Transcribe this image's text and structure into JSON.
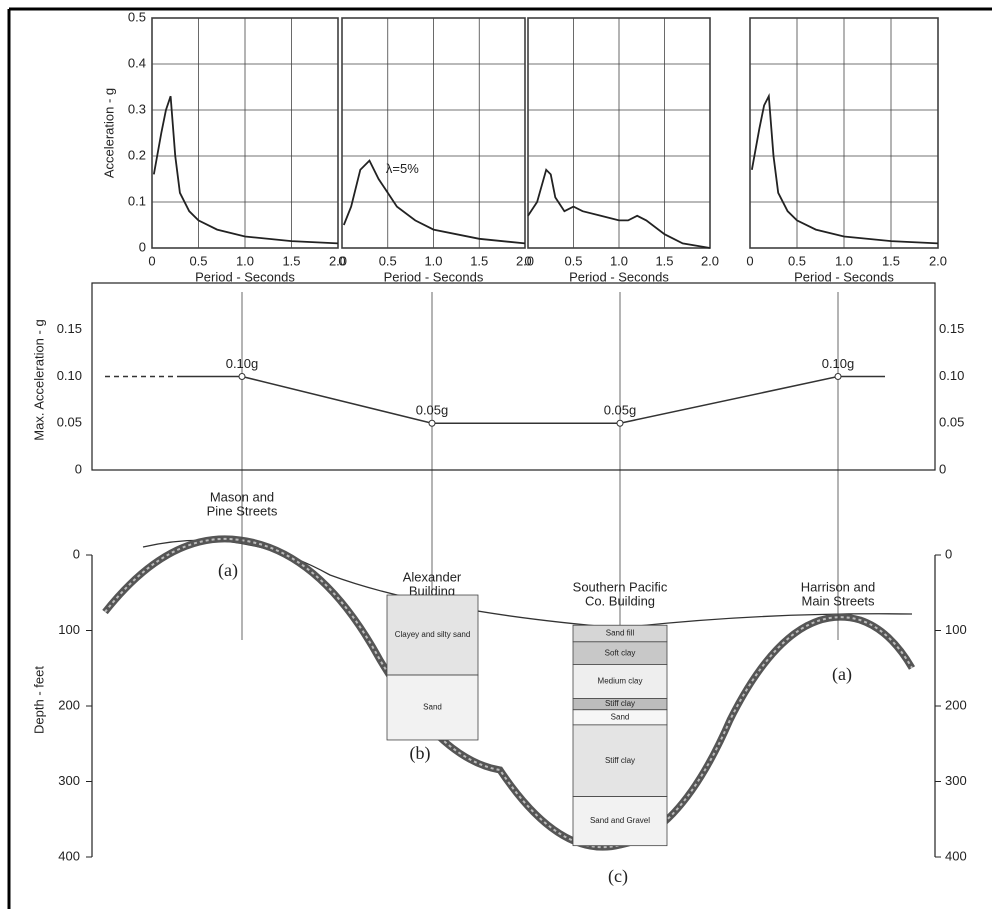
{
  "chart_data": [
    {
      "type": "line",
      "y_label": "Acceleration - g",
      "x_label": "Period - Seconds",
      "xlim": [
        0,
        2
      ],
      "ylim": [
        0,
        0.5
      ],
      "xticks": [
        0,
        0.5,
        {
          "value": 1,
          "label": "1.0"
        },
        1.5,
        {
          "value": 2,
          "label": "2.0"
        }
      ],
      "yticks": [
        0,
        0.1,
        0.2,
        0.3,
        0.4,
        0.5
      ],
      "y_tick_labels": true,
      "grid": true,
      "series": [
        {
          "color": "#222222",
          "x": [
            0.02,
            0.1,
            0.15,
            0.2,
            0.25,
            0.3,
            0.4,
            0.5,
            0.7,
            1.0,
            1.5,
            2.0
          ],
          "values": [
            0.16,
            0.25,
            0.3,
            0.33,
            0.2,
            0.12,
            0.08,
            0.06,
            0.04,
            0.025,
            0.015,
            0.01
          ]
        }
      ]
    },
    {
      "type": "line",
      "x_label": "Period - Seconds",
      "annotation": "λ=5%",
      "xlim": [
        0,
        2
      ],
      "ylim": [
        0,
        0.5
      ],
      "xticks": [
        0,
        0.5,
        {
          "value": 1,
          "label": "1.0"
        },
        1.5,
        {
          "value": 2,
          "label": "2.0"
        }
      ],
      "yticks": [
        0,
        0.1,
        0.2,
        0.3,
        0.4,
        0.5
      ],
      "y_tick_labels": false,
      "grid": true,
      "series": [
        {
          "color": "#222222",
          "x": [
            0.02,
            0.1,
            0.2,
            0.3,
            0.4,
            0.5,
            0.6,
            0.8,
            1.0,
            1.5,
            2.0
          ],
          "values": [
            0.05,
            0.09,
            0.17,
            0.19,
            0.15,
            0.12,
            0.09,
            0.06,
            0.04,
            0.02,
            0.01
          ]
        }
      ]
    },
    {
      "type": "line",
      "x_label": "Period - Seconds",
      "xlim": [
        0,
        2
      ],
      "ylim": [
        0,
        0.5
      ],
      "xticks": [
        0,
        0.5,
        {
          "value": 1,
          "label": "1.0"
        },
        1.5,
        {
          "value": 2,
          "label": "2.0"
        }
      ],
      "yticks": [
        0,
        0.1,
        0.2,
        0.3,
        0.4,
        0.5
      ],
      "y_tick_labels": false,
      "grid": true,
      "series": [
        {
          "color": "#222222",
          "x": [
            0.0,
            0.1,
            0.2,
            0.25,
            0.3,
            0.4,
            0.5,
            0.6,
            0.8,
            1.0,
            1.1,
            1.2,
            1.3,
            1.5,
            1.7,
            2.0
          ],
          "values": [
            0.07,
            0.1,
            0.17,
            0.16,
            0.11,
            0.08,
            0.09,
            0.08,
            0.07,
            0.06,
            0.06,
            0.07,
            0.06,
            0.03,
            0.01,
            0.0
          ]
        }
      ]
    },
    {
      "type": "line",
      "x_label": "Period - Seconds",
      "xlim": [
        0,
        2
      ],
      "ylim": [
        0,
        0.5
      ],
      "xticks": [
        0,
        0.5,
        {
          "value": 1,
          "label": "1.0"
        },
        1.5,
        {
          "value": 2,
          "label": "2.0"
        }
      ],
      "yticks": [
        0,
        0.1,
        0.2,
        0.3,
        0.4,
        0.5
      ],
      "y_tick_labels": false,
      "grid": true,
      "series": [
        {
          "color": "#222222",
          "x": [
            0.02,
            0.1,
            0.15,
            0.2,
            0.25,
            0.3,
            0.4,
            0.5,
            0.7,
            1.0,
            1.5,
            2.0
          ],
          "values": [
            0.17,
            0.26,
            0.31,
            0.33,
            0.2,
            0.12,
            0.08,
            0.06,
            0.04,
            0.025,
            0.015,
            0.01
          ]
        }
      ]
    },
    {
      "type": "points",
      "y_label": "Max. Acceleration - g",
      "ylim": [
        0,
        0.2
      ],
      "yticks": [
        0,
        0.05,
        {
          "value": 0.1,
          "label": "0.10"
        },
        0.15
      ],
      "values": [
        0.1,
        0.05,
        0.05,
        0.1
      ],
      "value_labels": [
        "0.10g",
        "0.05g",
        "0.05g",
        "0.10g"
      ]
    }
  ],
  "cross_section": {
    "y_label": "Depth - feet",
    "ylim": [
      0,
      400
    ],
    "yticks": [
      0,
      100,
      200,
      300,
      400
    ],
    "locations": [
      {
        "name": [
          "Mason and",
          "Pine Streets"
        ],
        "note": "(a)"
      },
      {
        "name": [
          "Alexander",
          "Building"
        ],
        "note": "(b)"
      },
      {
        "name": [
          "Southern Pacific",
          "Co. Building"
        ],
        "note": "(c)"
      },
      {
        "name": [
          "Harrison and",
          "Main Streets"
        ],
        "note": "(a)"
      }
    ],
    "boreholes": [
      {
        "layers": [
          {
            "label": "Clayey and silty sand",
            "top": 53,
            "bottom": 159
          },
          {
            "label": "Sand",
            "top": 159,
            "bottom": 245
          }
        ]
      },
      {
        "layers": [
          {
            "label": "Sand fill",
            "top": 93,
            "bottom": 115
          },
          {
            "label": "Soft clay",
            "top": 115,
            "bottom": 145
          },
          {
            "label": "Medium clay",
            "top": 145,
            "bottom": 190
          },
          {
            "label": "Stiff clay",
            "top": 190,
            "bottom": 205
          },
          {
            "label": "Sand",
            "top": 205,
            "bottom": 225
          },
          {
            "label": "Stiff clay",
            "top": 225,
            "bottom": 320
          },
          {
            "label": "Sand and Gravel",
            "top": 320,
            "bottom": 385
          }
        ]
      }
    ]
  }
}
